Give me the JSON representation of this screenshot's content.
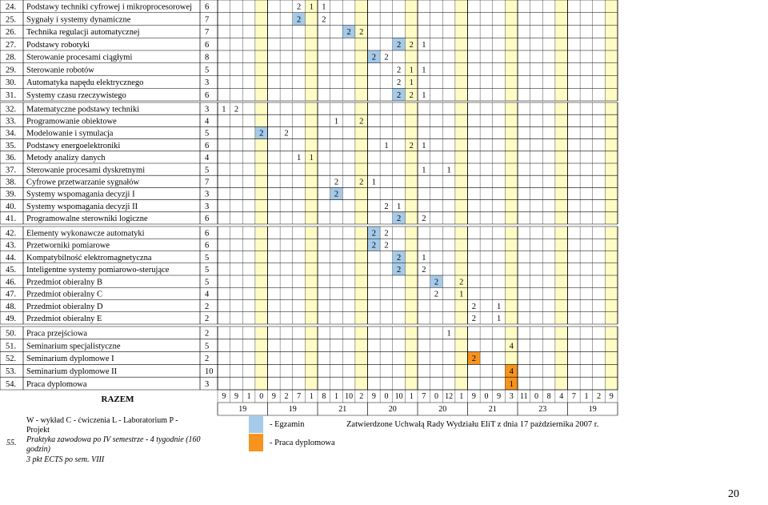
{
  "colors": {
    "exam_blue": "#a6cae9",
    "thesis_orange": "#f7941d",
    "semester_yellow": "#fffbc5",
    "grid": "#000000"
  },
  "rows": [
    {
      "label": "24. Podstawy techniki cyfrowej i mikroprocesorowej",
      "ects": "6",
      "hours": {
        "6": "2",
        "7": "1",
        "8": "1"
      },
      "exams": []
    },
    {
      "label": "25. Sygnały i systemy dynamiczne",
      "ects": "7",
      "hours": {
        "6": "2",
        "8": "2"
      },
      "exams": [
        6
      ]
    },
    {
      "label": "26. Technika regulacji automatycznej",
      "ects": "7",
      "hours": {
        "10": "2",
        "11": "2"
      },
      "exams": [
        10
      ]
    },
    {
      "label": "27. Podstawy robotyki",
      "ects": "6",
      "hours": {
        "14": "2",
        "15": "2",
        "16": "1"
      },
      "exams": [
        14
      ]
    },
    {
      "label": "28. Sterowanie procesami ciągłymi",
      "ects": "8",
      "hours": {
        "12": "2",
        "13": "2"
      },
      "exams": [
        12
      ]
    },
    {
      "label": "29. Sterowanie robotów",
      "ects": "5",
      "hours": {
        "14": "2",
        "15": "1",
        "16": "1"
      },
      "exams": []
    },
    {
      "label": "30. Automatyka napędu elektrycznego",
      "ects": "3",
      "hours": {
        "14": "2",
        "15": "1"
      },
      "exams": []
    },
    {
      "label": "31. Systemy czasu rzeczywistego",
      "ects": "6",
      "hours": {
        "14": "2",
        "15": "2",
        "16": "1"
      },
      "exams": [
        14
      ]
    },
    {
      "label": "32. Matematyczne podstawy techniki",
      "ects": "3",
      "hours": {
        "0": "1",
        "1": "2"
      },
      "exams": []
    },
    {
      "label": "33. Programowanie obiektowe",
      "ects": "4",
      "hours": {
        "9": "1",
        "11": "2"
      },
      "exams": []
    },
    {
      "label": "34. Modelowanie i symulacja",
      "ects": "5",
      "hours": {
        "3": "2",
        "5": "2"
      },
      "exams": [
        3
      ]
    },
    {
      "label": "35. Podstawy energoelektroniki",
      "ects": "6",
      "hours": {
        "13": "1",
        "15": "2",
        "16": "1"
      },
      "exams": []
    },
    {
      "label": "36. Metody analizy danych",
      "ects": "4",
      "hours": {
        "6": "1",
        "7": "1"
      },
      "exams": []
    },
    {
      "label": "37. Sterowanie procesami dyskretnymi",
      "ects": "5",
      "hours": {
        "16": "1",
        "18": "1"
      },
      "exams": []
    },
    {
      "label": "38. Cyfrowe przetwarzanie sygnałów",
      "ects": "7",
      "hours": {
        "9": "2",
        "11": "2",
        "12": "1"
      },
      "exams": []
    },
    {
      "label": "39. Systemy wspomagania decyzji I",
      "ects": "3",
      "hours": {
        "9": "2"
      },
      "exams": [
        9
      ]
    },
    {
      "label": "40. Systemy wspomagania decyzji II",
      "ects": "3",
      "hours": {
        "13": "2",
        "14": "1"
      },
      "exams": []
    },
    {
      "label": "41. Programowalne sterowniki logiczne",
      "ects": "6",
      "hours": {
        "14": "2",
        "16": "2"
      },
      "exams": [
        14
      ]
    },
    {
      "label": "42. Elementy wykonawcze automatyki",
      "ects": "6",
      "hours": {
        "12": "2",
        "13": "2"
      },
      "exams": [
        12
      ]
    },
    {
      "label": "43. Przetworniki pomiarowe",
      "ects": "6",
      "hours": {
        "12": "2",
        "13": "2"
      },
      "exams": [
        12
      ]
    },
    {
      "label": "44. Kompatybilność elektromagnetyczna",
      "ects": "5",
      "hours": {
        "14": "2",
        "16": "1"
      },
      "exams": [
        14
      ]
    },
    {
      "label": "45. Inteligentne systemy pomiarowo-sterujące",
      "ects": "5",
      "hours": {
        "14": "2",
        "16": "2"
      },
      "exams": [
        14
      ]
    },
    {
      "label": "46. Przedmiot obieralny B",
      "ects": "5",
      "hours": {
        "17": "2",
        "19": "2"
      },
      "exams": [
        17
      ]
    },
    {
      "label": "47. Przedmiot obieralny C",
      "ects": "4",
      "hours": {
        "17": "2",
        "19": "1"
      },
      "exams": []
    },
    {
      "label": "48. Przedmiot obieralny D",
      "ects": "2",
      "hours": {
        "20": "2",
        "22": "1"
      },
      "exams": []
    },
    {
      "label": "49. Przedmiot obieralny E",
      "ects": "2",
      "hours": {
        "20": "2",
        "22": "1"
      },
      "exams": []
    },
    {
      "label": "50. Praca przejściowa",
      "ects": "2",
      "hours": {
        "18": "1"
      },
      "exams": []
    },
    {
      "label": "51. Seminarium specjalistyczne",
      "ects": "5",
      "hours": {
        "23": "4"
      },
      "exams": []
    },
    {
      "label": "52. Seminarium dyplomowe I",
      "ects": "2",
      "hours": {
        "20": "2"
      },
      "exams": [],
      "thesis": [
        20
      ]
    },
    {
      "label": "53. Seminarium dyplomowe II",
      "ects": "10",
      "hours": {
        "23": "4"
      },
      "exams": [],
      "thesis": [
        23
      ]
    },
    {
      "label": "54. Praca dyplomowa",
      "ects": "3",
      "hours": {
        "23": "1"
      },
      "exams": [],
      "thesis": [
        23
      ]
    }
  ],
  "summary": {
    "razem": "RAZEM",
    "totals": [
      "9",
      "9",
      "1",
      "0",
      "9",
      "2",
      "7",
      "1",
      "8",
      "1",
      "10",
      "2",
      "9",
      "0",
      "10",
      "1",
      "7",
      "0",
      "12",
      "1",
      "9",
      "0",
      "9",
      "3",
      "11",
      "0",
      "8",
      "4",
      "7",
      "1",
      "2",
      "9"
    ],
    "semester_totals": [
      "19",
      "19",
      "21",
      "20",
      "20",
      "21",
      "23",
      "19"
    ]
  },
  "footer": {
    "row_number": "55.",
    "abbreviations": "W - wykład  C - ćwiczenia  L - Laboratorium  P - Projekt",
    "practice_line1": "Praktyka zawodowa po IV semestrze - 4 tygodnie (160 godzin)",
    "practice_line2": "3 pkt ECTS po sem. VIII",
    "legend_exam": "- Egzamin",
    "legend_thesis": "- Praca dyplomowa",
    "approval": "Zatwierdzone Uchwałą Rady Wydziału EliT z dnia 17 października 2007 r.",
    "page_number": "20"
  }
}
